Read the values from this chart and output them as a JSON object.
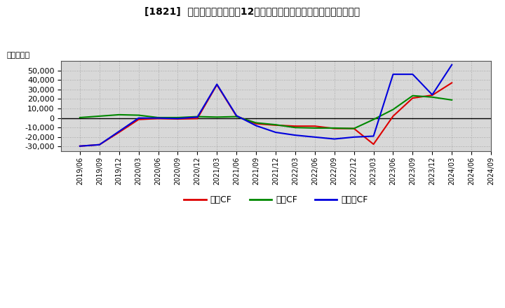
{
  "title": "[1821]  キャッシュフローの12か月移動合計の対前年同期増減額の推移",
  "ylabel": "（百万円）",
  "background_color": "#ffffff",
  "grid_color": "#999999",
  "plot_bg_color": "#d8d8d8",
  "ylim": [
    -35000,
    60000
  ],
  "yticks": [
    -30000,
    -20000,
    -10000,
    0,
    10000,
    20000,
    30000,
    40000,
    50000
  ],
  "x_labels": [
    "2019/06",
    "2019/09",
    "2019/12",
    "2020/03",
    "2020/06",
    "2020/09",
    "2020/12",
    "2021/03",
    "2021/06",
    "2021/09",
    "2021/12",
    "2022/03",
    "2022/06",
    "2022/09",
    "2022/12",
    "2023/03",
    "2023/06",
    "2023/09",
    "2023/12",
    "2024/03",
    "2024/06",
    "2024/09"
  ],
  "series_order": [
    "営業CF",
    "投資CF",
    "フリーCF"
  ],
  "series": {
    "営業CF": {
      "color": "#dd0000",
      "values": [
        -29500,
        -28000,
        -15000,
        -1500,
        -500,
        -1000,
        -500,
        35000,
        2000,
        -6000,
        -7500,
        -8500,
        -8500,
        -11000,
        -11000,
        -27500,
        2000,
        21000,
        24000,
        37000,
        null,
        null
      ]
    },
    "投資CF": {
      "color": "#008800",
      "values": [
        500,
        2000,
        3500,
        3000,
        500,
        500,
        1500,
        1000,
        1500,
        -5000,
        -7000,
        -10000,
        -10500,
        -10500,
        -11000,
        -1500,
        9000,
        23500,
        22000,
        19000,
        null,
        null
      ]
    },
    "フリーCF": {
      "color": "#0000dd",
      "values": [
        -29500,
        -28000,
        -14000,
        0,
        0,
        -500,
        1000,
        35500,
        2500,
        -8000,
        -15000,
        -18000,
        -20000,
        -22000,
        -20000,
        -19000,
        46000,
        46000,
        24500,
        56000,
        null,
        null
      ]
    }
  },
  "legend_labels": [
    "営業CF",
    "投資CF",
    "フリーCF"
  ],
  "legend_colors": [
    "#dd0000",
    "#008800",
    "#0000dd"
  ]
}
